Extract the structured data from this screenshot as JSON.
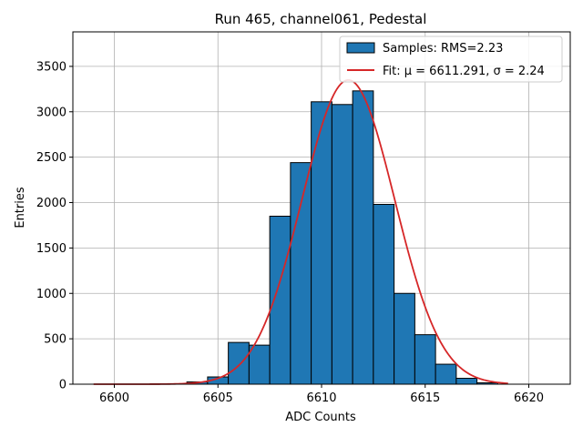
{
  "chart_data": {
    "type": "bar",
    "title": "Run 465, channel061, Pedestal",
    "xlabel": "ADC Counts",
    "ylabel": "Entries",
    "xlim": [
      6598,
      6622
    ],
    "ylim": [
      0,
      3880
    ],
    "grid": true,
    "legend_placement": "top-right",
    "bar_color": "#1f77b4",
    "fit_color": "#d62728",
    "bin_width": 1,
    "xticks": [
      6600,
      6605,
      6610,
      6615,
      6620
    ],
    "yticks": [
      0,
      500,
      1000,
      1500,
      2000,
      2500,
      3000,
      3500
    ],
    "bins": [
      {
        "x": 6601,
        "value": 0
      },
      {
        "x": 6602,
        "value": 0
      },
      {
        "x": 6603,
        "value": 0
      },
      {
        "x": 6604,
        "value": 25
      },
      {
        "x": 6605,
        "value": 80
      },
      {
        "x": 6606,
        "value": 460
      },
      {
        "x": 6607,
        "value": 430
      },
      {
        "x": 6608,
        "value": 1850
      },
      {
        "x": 6609,
        "value": 2440
      },
      {
        "x": 6610,
        "value": 3110
      },
      {
        "x": 6611,
        "value": 3080
      },
      {
        "x": 6612,
        "value": 3230
      },
      {
        "x": 6613,
        "value": 1980
      },
      {
        "x": 6614,
        "value": 1000
      },
      {
        "x": 6615,
        "value": 545
      },
      {
        "x": 6616,
        "value": 220
      },
      {
        "x": 6617,
        "value": 65
      },
      {
        "x": 6618,
        "value": 15
      }
    ],
    "series": [
      {
        "name": "Samples: RMS=2.23",
        "kind": "histogram"
      },
      {
        "name": "Fit: μ = 6611.291, σ = 2.24",
        "kind": "gaussian_fit",
        "mu": 6611.291,
        "sigma": 2.24,
        "amplitude": 3350,
        "x_range": [
          6599,
          6619
        ]
      }
    ]
  }
}
